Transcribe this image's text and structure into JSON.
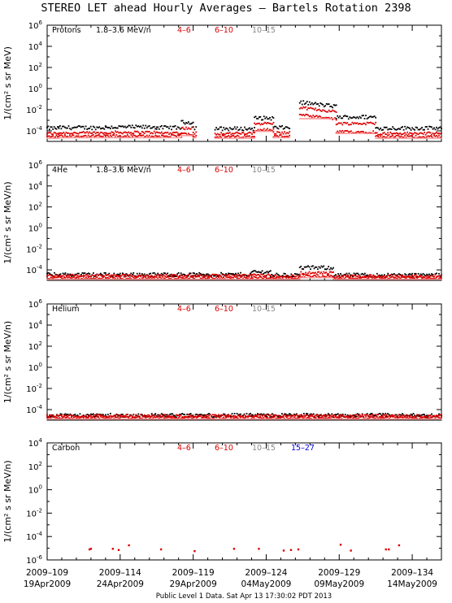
{
  "title": "STEREO LET ahead Hourly Averages – Bartels Rotation 2398",
  "footer": "Public Level 1 Data. Sat Apr 13 17:30:02 PDT 2013",
  "colors": {
    "black": "#000000",
    "red": "#dd0000",
    "gray": "#888888",
    "blue": "#0000dd",
    "shadow": "#ff9a9a"
  },
  "x_ticks": [
    {
      "doy": 109,
      "label1": "2009–109",
      "label2": "19Apr2009"
    },
    {
      "doy": 114,
      "label1": "2009–114",
      "label2": "24Apr2009"
    },
    {
      "doy": 119,
      "label1": "2009–119",
      "label2": "29Apr2009"
    },
    {
      "doy": 124,
      "label1": "2009–124",
      "label2": "04May2009"
    },
    {
      "doy": 129,
      "label1": "2009–129",
      "label2": "09May2009"
    },
    {
      "doy": 134,
      "label1": "2009–134",
      "label2": "14May2009"
    }
  ],
  "x_range": [
    109,
    136
  ],
  "chart_data": [
    {
      "type": "scatter",
      "species": "Protons",
      "energy_label": "1.8–3.6 MeV/n",
      "legend": [
        {
          "label": "4–6",
          "color": "#dd0000"
        },
        {
          "label": "6–10",
          "color": "#dd0000"
        },
        {
          "label": "10–15",
          "color": "#888888"
        }
      ],
      "ylabel": "1/(cm² s sr MeV)",
      "y_log_range": [
        -5,
        6
      ],
      "y_ticks": [
        6,
        4,
        2,
        0,
        -2,
        -4
      ],
      "segments": [
        {
          "x0": 109.0,
          "x1": 109.8,
          "y": [
            -3.75,
            -4.25,
            -4.55
          ]
        },
        {
          "x0": 109.8,
          "x1": 113.0,
          "y": [
            -3.7,
            -4.2,
            -4.5
          ]
        },
        {
          "x0": 113.0,
          "x1": 116.5,
          "y": [
            -3.65,
            -4.15,
            -4.5
          ]
        },
        {
          "x0": 116.5,
          "x1": 118.2,
          "y": [
            -3.7,
            -4.2,
            -4.5
          ]
        },
        {
          "x0": 118.2,
          "x1": 119.0,
          "y": [
            -3.2,
            -3.75,
            -4.3
          ]
        },
        {
          "x0": 119.0,
          "x1": 119.2,
          "y": [
            -3.7,
            -4.2,
            -4.5
          ]
        },
        {
          "x0": 120.5,
          "x1": 123.2,
          "y": [
            -3.8,
            -4.25,
            -4.55
          ]
        },
        {
          "x0": 123.2,
          "x1": 124.5,
          "y": [
            -2.8,
            -3.3,
            -3.9
          ]
        },
        {
          "x0": 124.5,
          "x1": 125.6,
          "y": [
            -3.7,
            -4.2,
            -4.5
          ]
        },
        {
          "x0": 126.3,
          "x1": 128.8,
          "y": [
            -1.5,
            -2.0,
            -2.7
          ]
        },
        {
          "x0": 128.8,
          "x1": 131.5,
          "y": [
            -2.7,
            -3.3,
            -4.1
          ]
        },
        {
          "x0": 131.5,
          "x1": 136.0,
          "y": [
            -3.75,
            -4.25,
            -4.55
          ]
        }
      ]
    },
    {
      "type": "scatter",
      "species": "4He",
      "energy_label": "1.8–3.6 MeV/n",
      "legend": [
        {
          "label": "4–6",
          "color": "#dd0000"
        },
        {
          "label": "6–10",
          "color": "#dd0000"
        },
        {
          "label": "10–15",
          "color": "#888888"
        }
      ],
      "ylabel": "1/(cm² s sr MeV/n)",
      "y_log_range": [
        -5,
        6
      ],
      "y_ticks": [
        6,
        4,
        2,
        0,
        -2,
        -4
      ],
      "segments": [
        {
          "x0": 109.0,
          "x1": 123.0,
          "y": [
            -4.45,
            -4.55,
            -4.75
          ]
        },
        {
          "x0": 123.0,
          "x1": 124.3,
          "y": [
            -4.2,
            -4.5,
            -4.75
          ]
        },
        {
          "x0": 124.3,
          "x1": 126.3,
          "y": [
            -4.5,
            -4.6,
            -4.75
          ]
        },
        {
          "x0": 126.3,
          "x1": 128.6,
          "y": [
            -3.8,
            -4.3,
            -4.6
          ]
        },
        {
          "x0": 128.6,
          "x1": 136.0,
          "y": [
            -4.5,
            -4.6,
            -4.75
          ]
        }
      ]
    },
    {
      "type": "scatter",
      "species": "Helium",
      "energy_label": "",
      "legend": [
        {
          "label": "4–6",
          "color": "#dd0000"
        },
        {
          "label": "6–10",
          "color": "#dd0000"
        },
        {
          "label": "10–15",
          "color": "#888888"
        }
      ],
      "ylabel": "1/(cm² s sr MeV/n)",
      "y_log_range": [
        -5,
        6
      ],
      "y_ticks": [
        6,
        4,
        2,
        0,
        -2,
        -4
      ],
      "segments": [
        {
          "x0": 109.0,
          "x1": 136.0,
          "y": [
            -4.55,
            -4.6,
            -4.75
          ]
        }
      ]
    },
    {
      "type": "scatter",
      "species": "Carbon",
      "energy_label": "",
      "legend": [
        {
          "label": "4–6",
          "color": "#dd0000"
        },
        {
          "label": "6–10",
          "color": "#dd0000"
        },
        {
          "label": "10–15",
          "color": "#888888"
        },
        {
          "label": "15–27",
          "color": "#0000dd"
        }
      ],
      "ylabel": "1/(cm² s sr MeV/n)",
      "y_log_range": [
        -6,
        4
      ],
      "y_ticks": [
        4,
        2,
        0,
        -2,
        -4,
        -6
      ],
      "points": [
        [
          111.9,
          -5.1
        ],
        [
          112.0,
          -5.05
        ],
        [
          113.5,
          -5.05
        ],
        [
          113.9,
          -5.15
        ],
        [
          114.6,
          -4.75
        ],
        [
          116.8,
          -5.1
        ],
        [
          119.1,
          -5.25
        ],
        [
          121.8,
          -5.05
        ],
        [
          123.5,
          -5.05
        ],
        [
          125.2,
          -5.2
        ],
        [
          125.7,
          -5.15
        ],
        [
          126.2,
          -5.1
        ],
        [
          129.1,
          -4.7
        ],
        [
          129.8,
          -5.2
        ],
        [
          132.2,
          -5.1
        ],
        [
          132.4,
          -5.1
        ],
        [
          133.1,
          -4.75
        ]
      ]
    }
  ]
}
